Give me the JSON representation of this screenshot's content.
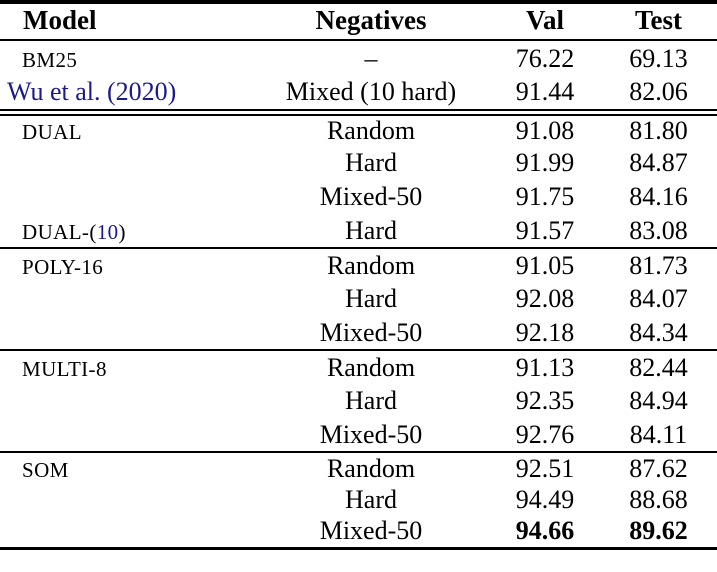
{
  "colors": {
    "text": "#000000",
    "citation_blue": "#1a1a8c",
    "background": "#ffffff",
    "rule": "#000000"
  },
  "table": {
    "headers": {
      "model": "Model",
      "negatives": "Negatives",
      "val": "Val",
      "test": "Test"
    },
    "groups": [
      {
        "rows": [
          {
            "model_sc": "BM25",
            "negatives": "–",
            "val": "76.22",
            "test": "69.13"
          },
          {
            "model_cite": "Wu et al. (2020)",
            "negatives": "Mixed (10 hard)",
            "val": "91.44",
            "test": "82.06"
          }
        ]
      },
      {
        "rows": [
          {
            "model_sc": "DUAL",
            "negatives": "Random",
            "val": "91.08",
            "test": "81.80"
          },
          {
            "negatives": "Hard",
            "val": "91.99",
            "test": "84.87"
          },
          {
            "negatives": "Mixed-50",
            "val": "91.75",
            "test": "84.16"
          },
          {
            "model_sc": "DUAL-(",
            "model_cite_inline": "10",
            "model_suffix": ")",
            "negatives": "Hard",
            "val": "91.57",
            "test": "83.08"
          }
        ]
      },
      {
        "rows": [
          {
            "model_sc": "POLY-16",
            "negatives": "Random",
            "val": "91.05",
            "test": "81.73"
          },
          {
            "negatives": "Hard",
            "val": "92.08",
            "test": "84.07"
          },
          {
            "negatives": "Mixed-50",
            "val": "92.18",
            "test": "84.34"
          }
        ]
      },
      {
        "rows": [
          {
            "model_sc": "MULTI-8",
            "negatives": "Random",
            "val": "91.13",
            "test": "82.44"
          },
          {
            "negatives": "Hard",
            "val": "92.35",
            "test": "84.94"
          },
          {
            "negatives": "Mixed-50",
            "val": "92.76",
            "test": "84.11"
          }
        ]
      },
      {
        "rows": [
          {
            "model_sc": "SOM",
            "negatives": "Random",
            "val": "92.51",
            "test": "87.62"
          },
          {
            "negatives": "Hard",
            "val": "94.49",
            "test": "88.68"
          },
          {
            "negatives": "Mixed-50",
            "val": "94.66",
            "test": "89.62",
            "bold": true
          }
        ]
      }
    ]
  }
}
